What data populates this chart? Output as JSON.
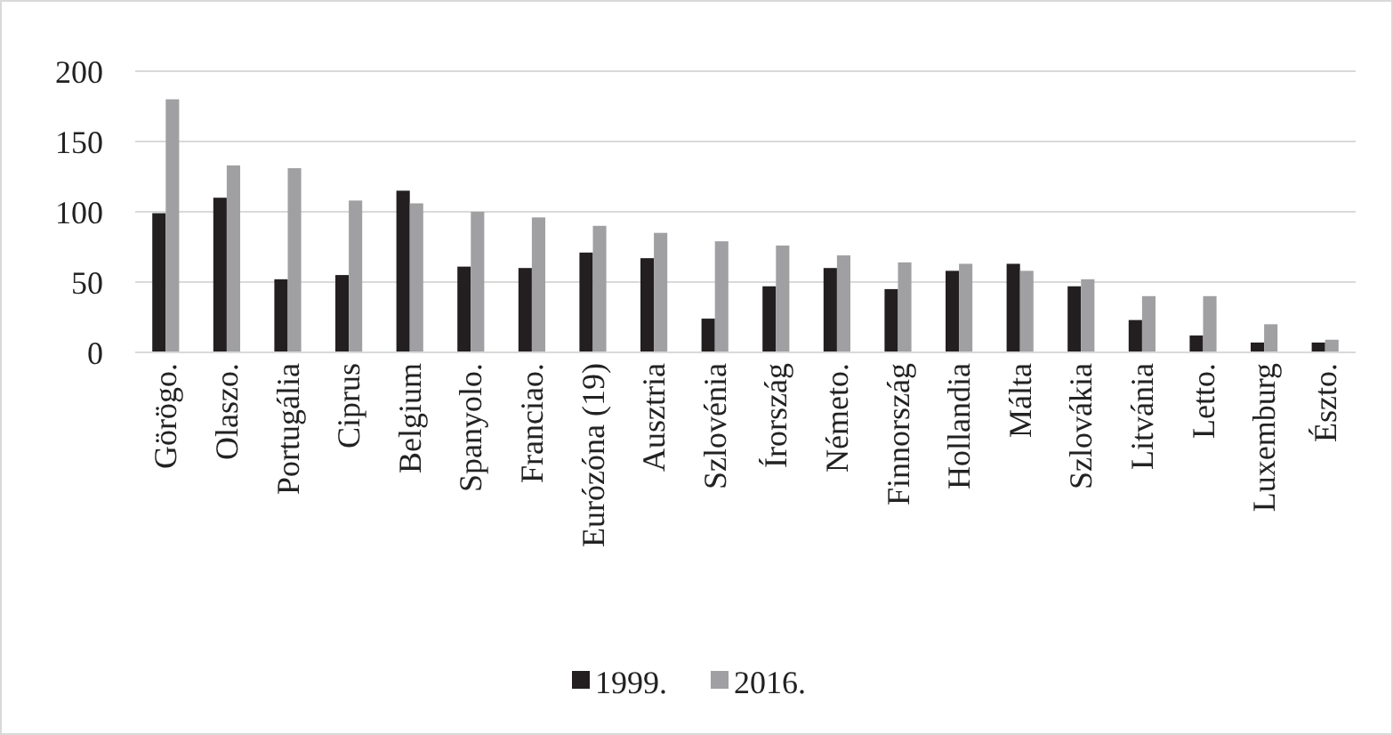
{
  "chart_data": {
    "type": "bar",
    "categories": [
      "Görögo.",
      "Olaszo.",
      "Portugália",
      "Ciprus",
      "Belgium",
      "Spanyolo.",
      "Franciao.",
      "Eurózóna (19)",
      "Ausztria",
      "Szlovénia",
      "Írország",
      "Németo.",
      "Finnország",
      "Hollandia",
      "Málta",
      "Szlovákia",
      "Litvánia",
      "Letto.",
      "Luxemburg",
      "Észto."
    ],
    "series": [
      {
        "name": "1999.",
        "color": "#231f20",
        "values": [
          99,
          110,
          52,
          55,
          115,
          61,
          60,
          71,
          67,
          24,
          47,
          60,
          45,
          58,
          63,
          47,
          23,
          12,
          7,
          7
        ]
      },
      {
        "name": "2016.",
        "color": "#a0a0a3",
        "values": [
          180,
          133,
          131,
          108,
          106,
          100,
          96,
          90,
          85,
          79,
          76,
          69,
          64,
          63,
          58,
          52,
          40,
          40,
          20,
          9
        ]
      }
    ],
    "ylim": [
      0,
      200
    ],
    "yticks": [
      0,
      50,
      100,
      150,
      200
    ],
    "grid": "y",
    "legend": "bottom"
  }
}
